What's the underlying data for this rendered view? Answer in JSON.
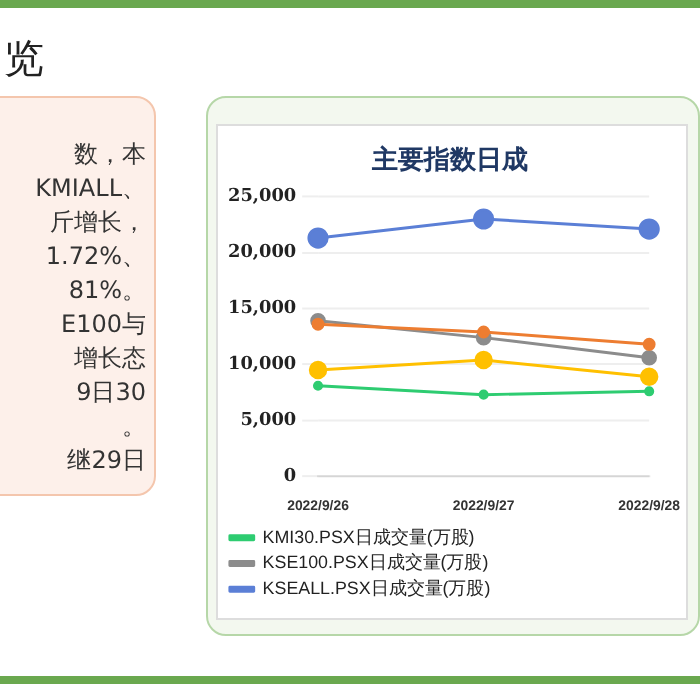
{
  "chart_data": {
    "type": "line",
    "title": "主要指数日成",
    "categories": [
      "2022/9/26",
      "2022/9/27",
      "2022/9/28"
    ],
    "series": [
      {
        "name": "KMI30.PSX日成交量(万股)",
        "color": "#2ecc71",
        "values": [
          8100,
          7300,
          7600
        ]
      },
      {
        "color": "#ed7d31",
        "values": [
          13600,
          12900,
          11800
        ]
      },
      {
        "name": "KSE100.PSX日成交量(万股)",
        "color": "#8c8c8c",
        "values": [
          13900,
          12400,
          10600
        ]
      },
      {
        "color": "#ffc000",
        "values": [
          9500,
          10400,
          8900
        ]
      },
      {
        "name": "KSEALL.PSX日成交量(万股)",
        "color": "#5b7fd6",
        "values": [
          21300,
          23000,
          22100
        ]
      }
    ],
    "ylim": [
      0,
      25000
    ],
    "yticks": [
      {
        "value": 0,
        "label": "0"
      },
      {
        "value": 5000,
        "label": "5,000"
      },
      {
        "value": 10000,
        "label": "10,000"
      },
      {
        "value": 15000,
        "label": "15,000"
      },
      {
        "value": 20000,
        "label": "20,000"
      },
      {
        "value": 25000,
        "label": "25,000"
      }
    ],
    "grid": "y",
    "legend": "bottom",
    "marker": "circle",
    "line_style": "solid",
    "annotations": [
      "览",
      "数，本",
      "KMIALL、",
      "斤增长，",
      "1.72%、",
      "81%。",
      "E100与",
      "增长态",
      "9日30",
      "。",
      "继29日"
    ]
  }
}
